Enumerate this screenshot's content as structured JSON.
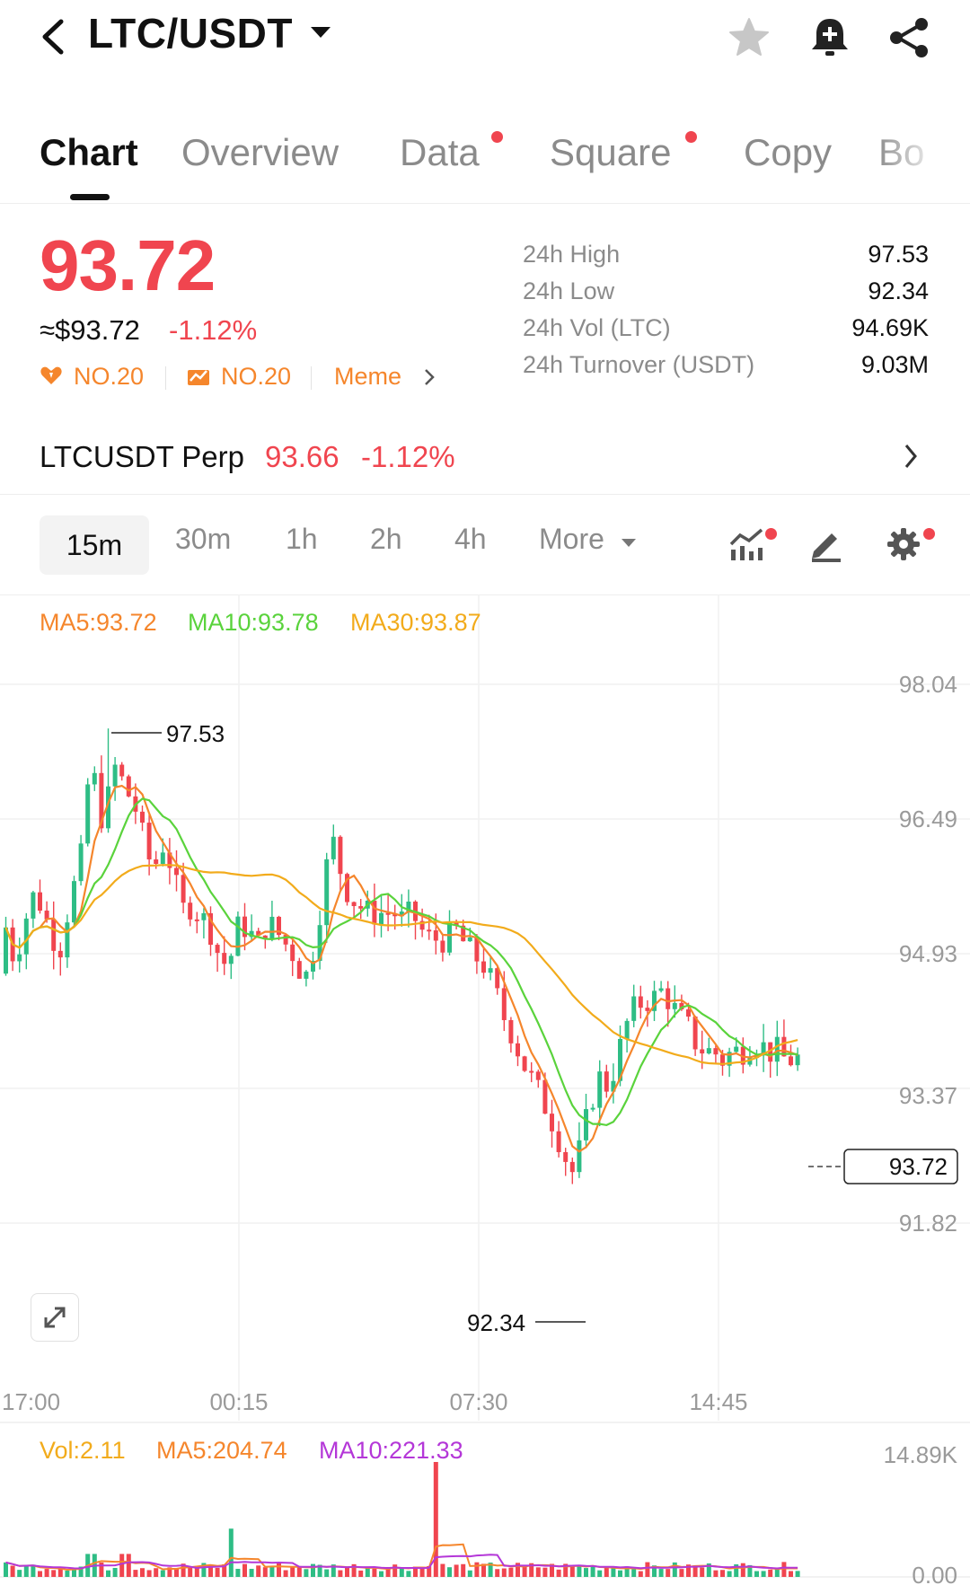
{
  "header": {
    "pair": "LTC/USDT",
    "icons": [
      "back-arrow-icon",
      "star-icon",
      "bell-add-icon",
      "share-icon"
    ]
  },
  "tabs": [
    {
      "label": "Chart",
      "active": true,
      "dot": false
    },
    {
      "label": "Overview",
      "active": false,
      "dot": false
    },
    {
      "label": "Data",
      "active": false,
      "dot": true
    },
    {
      "label": "Square",
      "active": false,
      "dot": true
    },
    {
      "label": "Copy",
      "active": false,
      "dot": false
    },
    {
      "label": "Bo",
      "active": false,
      "dot": false
    }
  ],
  "ticker": {
    "price": "93.72",
    "usd_price": "≈$93.72",
    "change": "-1.12%",
    "badges": [
      {
        "label": "NO.20",
        "icon": "heart-fire-icon"
      },
      {
        "label": "NO.20",
        "icon": "chart-rise-icon"
      },
      {
        "label": "Meme",
        "icon": "chevron-right-icon"
      }
    ],
    "stats": [
      {
        "label": "24h High",
        "value": "97.53"
      },
      {
        "label": "24h Low",
        "value": "92.34"
      },
      {
        "label": "24h Vol (LTC)",
        "value": "94.69K"
      },
      {
        "label": "24h Turnover (USDT)",
        "value": "9.03M"
      }
    ]
  },
  "perp": {
    "name": "LTCUSDT Perp",
    "price": "93.66",
    "change": "-1.12%"
  },
  "intervals": {
    "items": [
      "15m",
      "30m",
      "1h",
      "2h",
      "4h",
      "More"
    ],
    "selected": "15m"
  },
  "colors": {
    "up": "#2ebd85",
    "down": "#f0454f",
    "ma5": "#f5862c",
    "ma10": "#5ad33c",
    "ma30": "#f2ab1b",
    "vol_ma10": "#b437d8"
  },
  "chart_data": {
    "type": "candlestick",
    "indicators": {
      "ma5": "MA5:93.72",
      "ma10": "MA10:93.78",
      "ma30": "MA30:93.87"
    },
    "y_ticks": [
      "98.04",
      "96.49",
      "94.93",
      "93.37",
      "91.82"
    ],
    "ylim": [
      91.82,
      98.04
    ],
    "x_ticks": [
      "17:00",
      "00:15",
      "07:30",
      "14:45"
    ],
    "high_marker": "97.53",
    "low_marker": "92.34",
    "last_price": "93.72",
    "volume": {
      "vol": "Vol:2.11",
      "ma5": "MA5:204.74",
      "ma10": "MA10:221.33",
      "y_ticks": [
        "14.89K",
        "0.00"
      ]
    }
  }
}
